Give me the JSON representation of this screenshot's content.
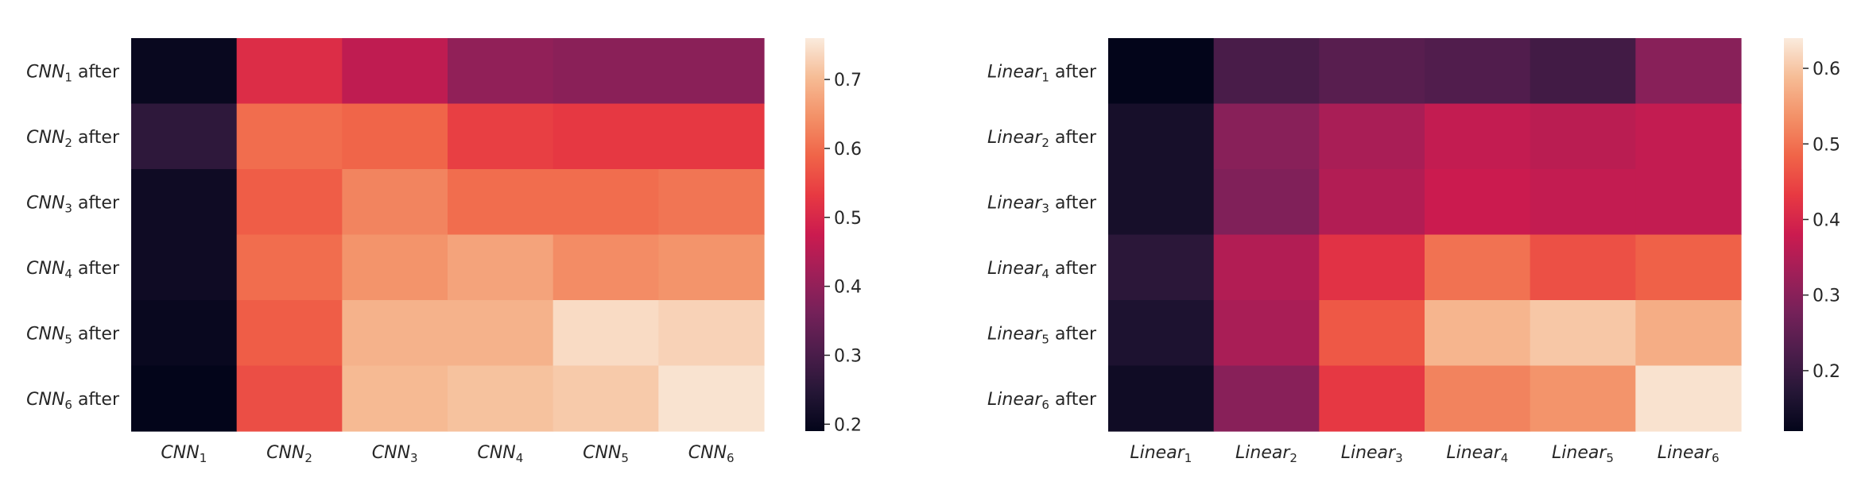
{
  "chart_data": [
    {
      "type": "heatmap",
      "row_labels": [
        {
          "name": "CNN",
          "sub": "1",
          "suffix": " after"
        },
        {
          "name": "CNN",
          "sub": "2",
          "suffix": " after"
        },
        {
          "name": "CNN",
          "sub": "3",
          "suffix": " after"
        },
        {
          "name": "CNN",
          "sub": "4",
          "suffix": " after"
        },
        {
          "name": "CNN",
          "sub": "5",
          "suffix": " after"
        },
        {
          "name": "CNN",
          "sub": "6",
          "suffix": " after"
        }
      ],
      "col_labels": [
        {
          "name": "CNN",
          "sub": "1"
        },
        {
          "name": "CNN",
          "sub": "2"
        },
        {
          "name": "CNN",
          "sub": "3"
        },
        {
          "name": "CNN",
          "sub": "4"
        },
        {
          "name": "CNN",
          "sub": "5"
        },
        {
          "name": "CNN",
          "sub": "6"
        }
      ],
      "values": [
        [
          0.2,
          0.51,
          0.46,
          0.4,
          0.39,
          0.39
        ],
        [
          0.26,
          0.6,
          0.59,
          0.54,
          0.53,
          0.53
        ],
        [
          0.21,
          0.58,
          0.63,
          0.6,
          0.6,
          0.61
        ],
        [
          0.21,
          0.6,
          0.65,
          0.67,
          0.64,
          0.65
        ],
        [
          0.2,
          0.58,
          0.69,
          0.69,
          0.74,
          0.73
        ],
        [
          0.19,
          0.56,
          0.7,
          0.71,
          0.72,
          0.75
        ]
      ],
      "vmin": 0.19,
      "vmax": 0.76,
      "colorbar_ticks": [
        0.2,
        0.3,
        0.4,
        0.5,
        0.6,
        0.7
      ],
      "colormap": "rocket"
    },
    {
      "type": "heatmap",
      "row_labels": [
        {
          "name": "Linear",
          "sub": "1",
          "suffix": " after"
        },
        {
          "name": "Linear",
          "sub": "2",
          "suffix": " after"
        },
        {
          "name": "Linear",
          "sub": "3",
          "suffix": " after"
        },
        {
          "name": "Linear",
          "sub": "4",
          "suffix": " after"
        },
        {
          "name": "Linear",
          "sub": "5",
          "suffix": " after"
        },
        {
          "name": "Linear",
          "sub": "6",
          "suffix": " after"
        }
      ],
      "col_labels": [
        {
          "name": "Linear",
          "sub": "1"
        },
        {
          "name": "Linear",
          "sub": "2"
        },
        {
          "name": "Linear",
          "sub": "3"
        },
        {
          "name": "Linear",
          "sub": "4"
        },
        {
          "name": "Linear",
          "sub": "5"
        },
        {
          "name": "Linear",
          "sub": "6"
        }
      ],
      "values": [
        [
          0.12,
          0.22,
          0.24,
          0.23,
          0.21,
          0.3
        ],
        [
          0.15,
          0.3,
          0.34,
          0.37,
          0.36,
          0.37
        ],
        [
          0.15,
          0.29,
          0.35,
          0.38,
          0.37,
          0.37
        ],
        [
          0.18,
          0.35,
          0.42,
          0.5,
          0.46,
          0.48
        ],
        [
          0.16,
          0.34,
          0.47,
          0.58,
          0.6,
          0.57
        ],
        [
          0.14,
          0.3,
          0.43,
          0.52,
          0.54,
          0.63
        ]
      ],
      "vmin": 0.12,
      "vmax": 0.64,
      "colorbar_ticks": [
        0.2,
        0.3,
        0.4,
        0.5,
        0.6
      ],
      "colormap": "rocket"
    }
  ]
}
